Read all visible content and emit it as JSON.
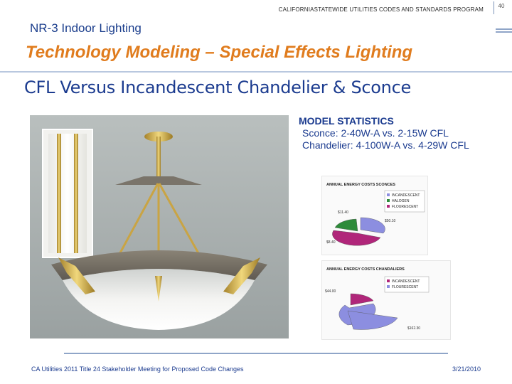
{
  "header": {
    "program": "CALIFORNIASTATEWIDE UTILITIES CODES AND STANDARDS PROGRAM",
    "page_number": "40"
  },
  "section": "NR-3 Indoor Lighting",
  "title": "Technology Modeling – Special Effects Lighting",
  "subtitle": "CFL Versus Incandescent Chandelier & Sconce",
  "stats": {
    "heading": "MODEL STATISTICS",
    "line1": "Sconce: 2-40W-A vs. 2-15W CFL",
    "line2": "Chandelier: 4-100W-A vs. 4-29W CFL"
  },
  "chart_data": [
    {
      "type": "pie",
      "title": "ANNUAL ENERGY COSTS SCONCES",
      "legend_position": "right",
      "legend": [
        "INCANDESCENT",
        "HALOGEN",
        "FLOURESCENT"
      ],
      "labels": [
        "$11.40",
        "$50.10",
        "$8.40"
      ],
      "colors": [
        "#8c8ee0",
        "#2e8b3a",
        "#b0267a"
      ]
    },
    {
      "type": "pie",
      "title": "ANNUAL ENERGY COSTS CHANDALIERS",
      "legend_position": "top-right",
      "legend": [
        "INCANDESCENT",
        "FLOURESCENT"
      ],
      "labels": [
        "$44.00",
        "$162.30"
      ],
      "colors": [
        "#b0267a",
        "#8c8ee0"
      ]
    }
  ],
  "footer": {
    "left": "CA Utilities 2011 Title 24 Stakeholder Meeting for Proposed Code Changes",
    "right": "3/21/2010"
  }
}
